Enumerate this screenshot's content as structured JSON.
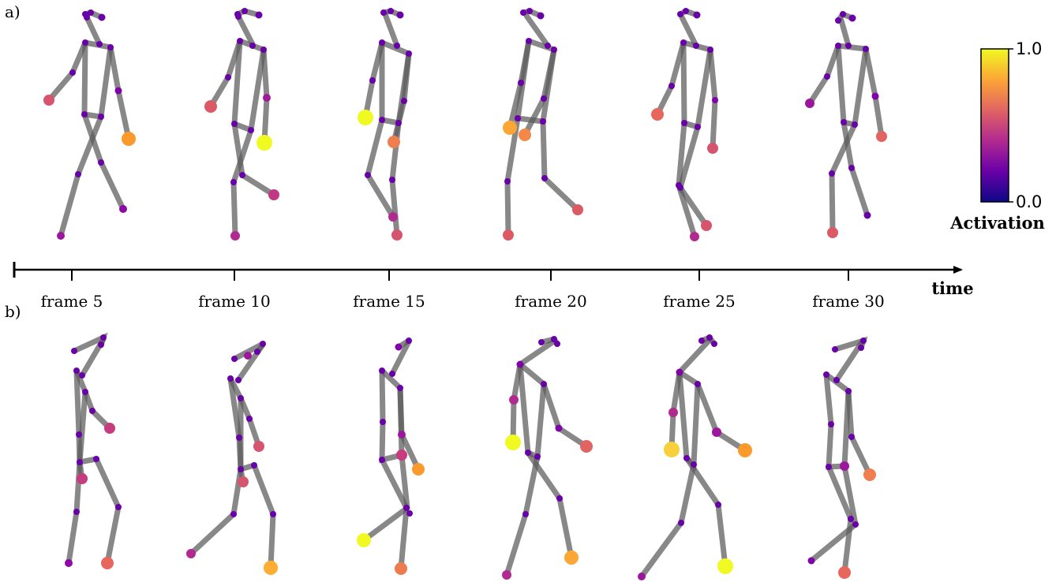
{
  "panels": {
    "a": "a)",
    "b": "b)"
  },
  "time_axis": {
    "label": "time",
    "frames": [
      "frame 5",
      "frame 10",
      "frame 15",
      "frame 20",
      "frame 25",
      "frame 30"
    ]
  },
  "colorbar": {
    "label": "Activation",
    "max_label": "1.0",
    "min_label": "0.0",
    "colormap": "plasma",
    "stops": [
      "#0d0887",
      "#6a00a8",
      "#b12a90",
      "#e16462",
      "#fca636",
      "#f0f921"
    ]
  },
  "bone_color": "#5a5a5a"
}
